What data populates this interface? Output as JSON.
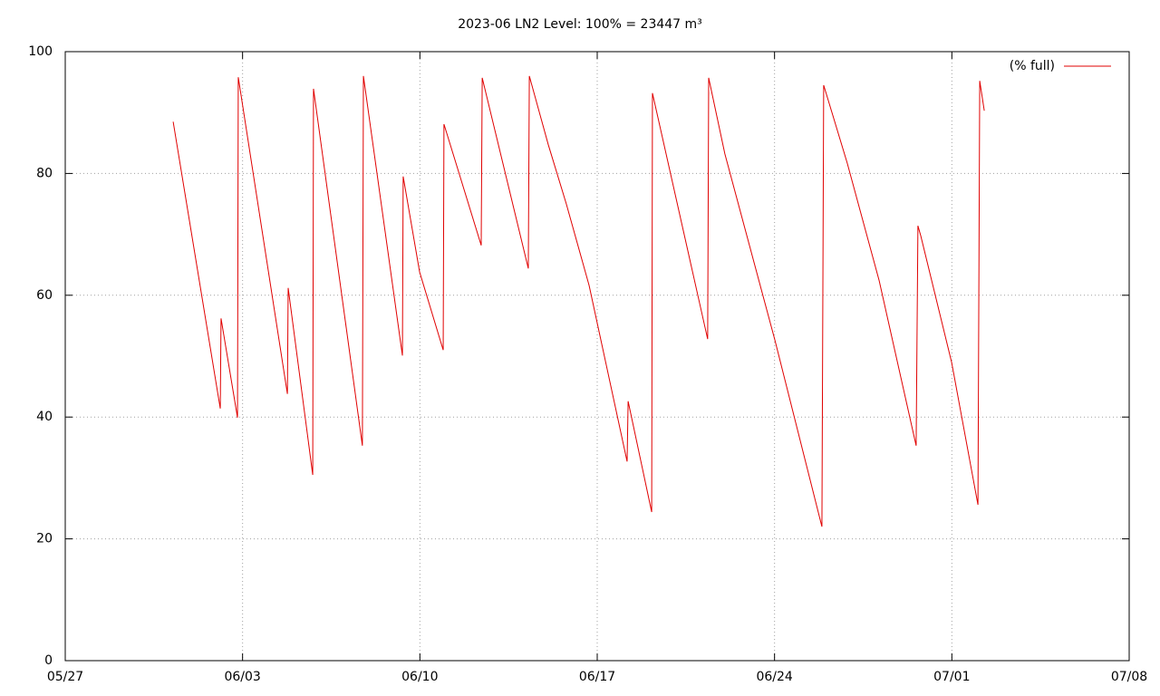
{
  "chart_data": {
    "type": "line",
    "title": "2023-06 LN2 Level: 100% = 23447 m³",
    "x": [
      4.26,
      6.12,
      6.15,
      6.8,
      6.83,
      8.77,
      8.8,
      9.77,
      9.8,
      11.73,
      11.77,
      13.31,
      13.34,
      13.99,
      14.92,
      14.95,
      16.42,
      16.46,
      18.28,
      18.32,
      19.07,
      19.78,
      20.68,
      22.18,
      22.22,
      23.15,
      23.18,
      25.36,
      25.4,
      26.04,
      28.01,
      29.87,
      29.94,
      30.87,
      32.13,
      33.59,
      33.66,
      33.77,
      34.99,
      36.03,
      36.1,
      36.28
    ],
    "series": [
      {
        "name": "(% full)",
        "color": "#e00000",
        "values": [
          88.5,
          41.4,
          56.2,
          39.9,
          95.8,
          43.8,
          61.2,
          30.5,
          93.9,
          35.3,
          96.0,
          50.1,
          79.5,
          63.8,
          51.0,
          88.1,
          68.2,
          95.7,
          64.4,
          96.0,
          84.7,
          75.0,
          61.6,
          32.7,
          42.6,
          24.4,
          93.2,
          52.8,
          95.7,
          83.2,
          52.7,
          22.0,
          94.5,
          81.7,
          62.4,
          35.3,
          71.4,
          69.8,
          49.0,
          25.6,
          95.2,
          90.3
        ]
      }
    ],
    "xlim": [
      0,
      42
    ],
    "xticks": [
      {
        "value": 0,
        "label": "05/27"
      },
      {
        "value": 7,
        "label": "06/03"
      },
      {
        "value": 14,
        "label": "06/10"
      },
      {
        "value": 21,
        "label": "06/17"
      },
      {
        "value": 28,
        "label": "06/24"
      },
      {
        "value": 35,
        "label": "07/01"
      },
      {
        "value": 42,
        "label": "07/08"
      }
    ],
    "ylim": [
      0,
      100
    ],
    "yticks": [
      0,
      20,
      40,
      60,
      80,
      100
    ],
    "grid": true,
    "legend": "top-right"
  }
}
